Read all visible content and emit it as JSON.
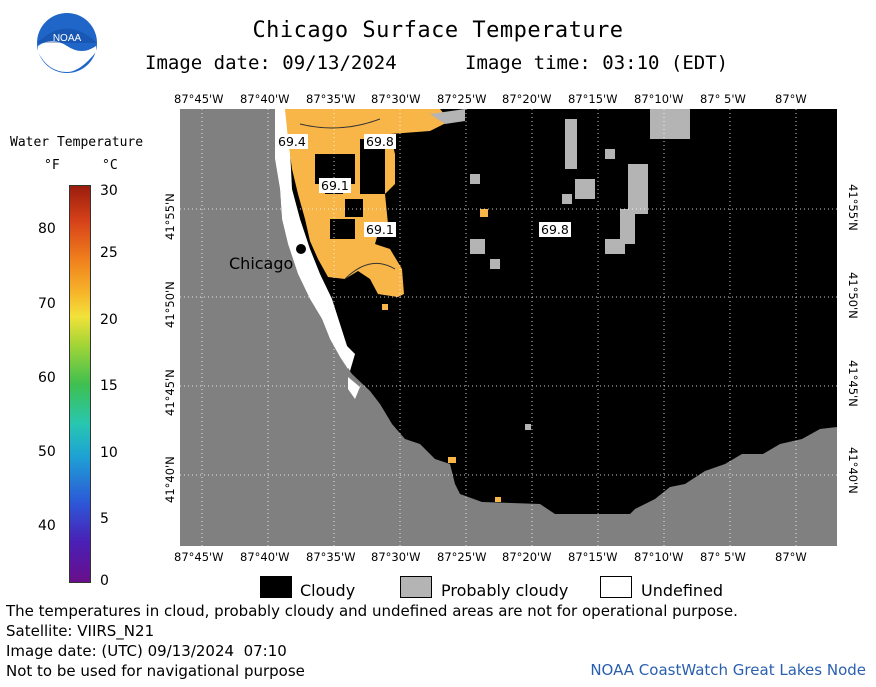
{
  "header": {
    "title": "Chicago Surface Temperature",
    "image_date": "Image date: 09/13/2024",
    "image_time": "Image time: 03:10 (EDT)",
    "logo_text": "NOAA"
  },
  "colorbar": {
    "title": "Water Temperature",
    "unit_f": "°F",
    "unit_c": "°C",
    "f_labels": [
      "80",
      "70",
      "60",
      "50",
      "40"
    ],
    "c_labels": [
      "30",
      "25",
      "20",
      "15",
      "10",
      "5",
      "0"
    ]
  },
  "map": {
    "lon_labels": [
      "87°45'W",
      "87°40'W",
      "87°35'W",
      "87°30'W",
      "87°25'W",
      "87°20'W",
      "87°15'W",
      "87°10'W",
      "87° 5'W",
      "87°W"
    ],
    "lat_labels": [
      "41°55'N",
      "41°50'N",
      "41°45'N",
      "41°40'N"
    ],
    "city": "Chicago",
    "temp_labels": [
      "69.4",
      "69.8",
      "69.1",
      "69.1",
      "69.8"
    ],
    "colors": {
      "land": "#808080",
      "cloudy": "#000000",
      "probably_cloudy": "#b4b4b4",
      "undefined": "#ffffff",
      "warm_water": "#f8b548"
    }
  },
  "legend": {
    "cloudy": "Cloudy",
    "probably_cloudy": "Probably cloudy",
    "undefined": "Undefined"
  },
  "footer": {
    "note": "The temperatures in cloud, probably cloudy and undefined areas are not for operational purpose.",
    "satellite": "Satellite: VIIRS_N21",
    "utc_date": "Image date: (UTC) 09/13/2024  07:10",
    "nav_warning": "Not to be used for navigational purpose",
    "credit": "NOAA CoastWatch Great Lakes Node"
  }
}
